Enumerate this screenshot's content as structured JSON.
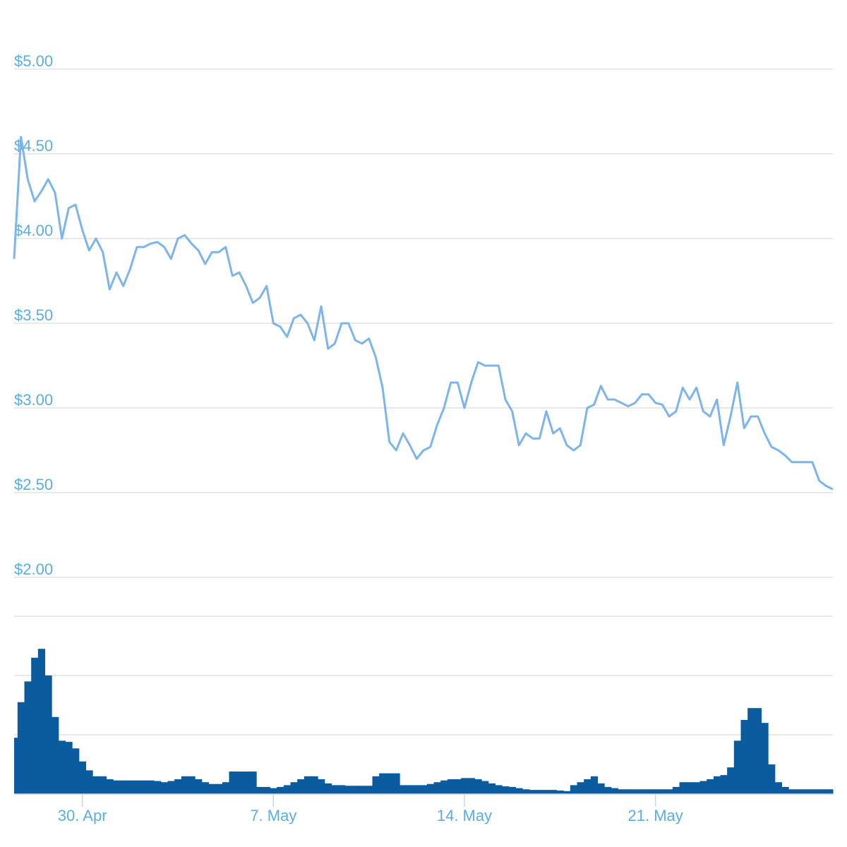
{
  "chart_data": {
    "type": "stock",
    "categories": [
      null,
      null,
      null,
      null,
      null,
      null,
      null,
      null,
      null,
      null,
      "30. Apr",
      null,
      null,
      null,
      null,
      null,
      null,
      null,
      null,
      null,
      null,
      null,
      null,
      null,
      null,
      null,
      null,
      null,
      null,
      null,
      null,
      null,
      null,
      null,
      null,
      null,
      null,
      null,
      "7. May",
      null,
      null,
      null,
      null,
      null,
      null,
      null,
      null,
      null,
      null,
      null,
      null,
      null,
      null,
      null,
      null,
      null,
      null,
      null,
      null,
      null,
      null,
      null,
      null,
      null,
      null,
      null,
      "14. May",
      null,
      null,
      null,
      null,
      null,
      null,
      null,
      null,
      null,
      null,
      null,
      null,
      null,
      null,
      null,
      null,
      null,
      null,
      null,
      null,
      null,
      null,
      null,
      null,
      null,
      null,
      null,
      "21. May",
      null,
      null,
      null,
      null,
      null,
      null,
      null,
      null,
      null,
      null,
      null,
      null,
      null,
      null,
      null,
      null,
      null,
      null,
      null,
      null,
      null,
      null,
      null,
      null,
      null,
      null
    ],
    "series": [
      {
        "type": "line",
        "axis": "y",
        "color": "#7cb5ec",
        "values": [
          3.88,
          4.6,
          4.35,
          4.22,
          4.28,
          4.35,
          4.27,
          4.0,
          4.18,
          4.2,
          4.05,
          3.93,
          4.0,
          3.92,
          3.7,
          3.8,
          3.72,
          3.82,
          3.95,
          3.95,
          3.97,
          3.98,
          3.95,
          3.88,
          4.0,
          4.02,
          3.97,
          3.93,
          3.85,
          3.92,
          3.92,
          3.95,
          3.78,
          3.8,
          3.72,
          3.62,
          3.65,
          3.72,
          3.5,
          3.48,
          3.42,
          3.53,
          3.55,
          3.5,
          3.4,
          3.6,
          3.35,
          3.38,
          3.5,
          3.5,
          3.4,
          3.38,
          3.41,
          3.3,
          3.12,
          2.8,
          2.75,
          2.85,
          2.78,
          2.7,
          2.75,
          2.77,
          2.9,
          3.0,
          3.15,
          3.15,
          3.0,
          3.15,
          3.27,
          3.25,
          3.25,
          3.25,
          3.05,
          2.98,
          2.78,
          2.85,
          2.82,
          2.82,
          2.98,
          2.85,
          2.88,
          2.78,
          2.75,
          2.78,
          3.0,
          3.02,
          3.13,
          3.05,
          3.05,
          3.03,
          3.01,
          3.03,
          3.08,
          3.08,
          3.03,
          3.02,
          2.95,
          2.98,
          3.12,
          3.05,
          3.12,
          2.98,
          2.95,
          3.05,
          2.78,
          2.95,
          3.15,
          2.88,
          2.95,
          2.95,
          2.85,
          2.77,
          2.75,
          2.72,
          2.68,
          2.68,
          2.68,
          2.68,
          2.57,
          2.54,
          2.52
        ]
      },
      {
        "type": "bar",
        "axis": "y2",
        "color": "#0b5c9e",
        "values": [
          0.95,
          1.55,
          1.9,
          2.3,
          2.45,
          2.0,
          1.3,
          0.9,
          0.88,
          0.77,
          0.55,
          0.4,
          0.3,
          0.3,
          0.25,
          0.23,
          0.23,
          0.23,
          0.23,
          0.23,
          0.23,
          0.22,
          0.2,
          0.22,
          0.25,
          0.3,
          0.3,
          0.25,
          0.2,
          0.17,
          0.17,
          0.2,
          0.38,
          0.38,
          0.38,
          0.38,
          0.12,
          0.12,
          0.1,
          0.12,
          0.15,
          0.2,
          0.25,
          0.3,
          0.3,
          0.25,
          0.18,
          0.15,
          0.15,
          0.14,
          0.14,
          0.14,
          0.14,
          0.3,
          0.35,
          0.35,
          0.35,
          0.15,
          0.15,
          0.15,
          0.15,
          0.17,
          0.2,
          0.23,
          0.25,
          0.25,
          0.27,
          0.27,
          0.25,
          0.22,
          0.18,
          0.15,
          0.13,
          0.12,
          0.1,
          0.08,
          0.07,
          0.07,
          0.07,
          0.07,
          0.06,
          0.05,
          0.15,
          0.2,
          0.25,
          0.3,
          0.18,
          0.12,
          0.1,
          0.08,
          0.08,
          0.08,
          0.08,
          0.08,
          0.08,
          0.08,
          0.08,
          0.12,
          0.2,
          0.2,
          0.2,
          0.22,
          0.25,
          0.3,
          0.32,
          0.45,
          0.9,
          1.25,
          1.45,
          1.45,
          1.2,
          0.5,
          0.2,
          0.12,
          0.08,
          0.08,
          0.08,
          0.08,
          0.08,
          0.08,
          0.08
        ]
      }
    ],
    "ylim": [
      1.8,
      5.3
    ],
    "yticks": [
      {
        "value": 2,
        "label": "$2.00"
      },
      {
        "value": 2.5,
        "label": "$2.50"
      },
      {
        "value": 3,
        "label": "$3.00"
      },
      {
        "value": 3.5,
        "label": "$3.50"
      },
      {
        "value": 4,
        "label": "$4.00"
      },
      {
        "value": 4.5,
        "label": "$4.50"
      },
      {
        "value": 5,
        "label": "$5.00"
      }
    ],
    "y2lim": [
      0,
      3
    ],
    "y2ticks": [
      0,
      1,
      2,
      3
    ],
    "y2_tick_labels": false,
    "grid": true
  }
}
